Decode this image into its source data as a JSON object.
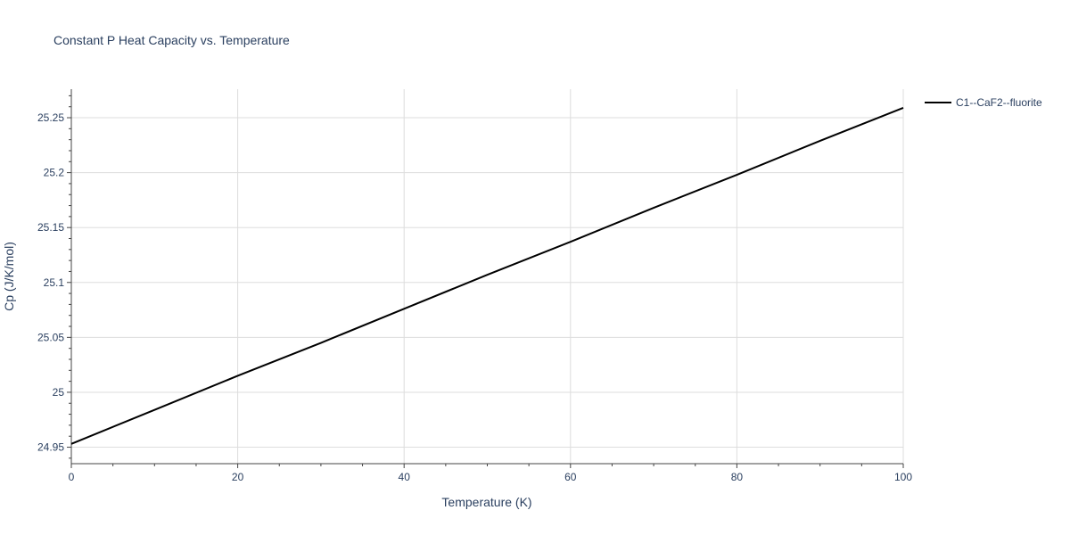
{
  "chart_data": {
    "type": "line",
    "title": "Constant P Heat Capacity vs. Temperature",
    "xlabel": "Temperature (K)",
    "ylabel": "Cp (J/K/mol)",
    "xlim": [
      0,
      100
    ],
    "ylim": [
      24.935,
      25.276
    ],
    "x_ticks": [
      0,
      20,
      40,
      60,
      80,
      100
    ],
    "x_tick_labels": [
      "0",
      "20",
      "40",
      "60",
      "80",
      "100"
    ],
    "y_ticks": [
      24.95,
      25.0,
      25.05,
      25.1,
      25.15,
      25.2,
      25.25
    ],
    "y_tick_labels": [
      "24.95",
      "25",
      "25.05",
      "25.1",
      "25.15",
      "25.2",
      "25.25"
    ],
    "x_minor_step": 5,
    "y_minor_step": 0.01,
    "grid": true,
    "legend_position": "top-right",
    "series": [
      {
        "name": "C1--CaF2--fluorite",
        "color": "#000000",
        "x": [
          0,
          10,
          20,
          30,
          40,
          50,
          60,
          70,
          80,
          90,
          100
        ],
        "y": [
          24.953,
          24.984,
          25.015,
          25.045,
          25.076,
          25.107,
          25.137,
          25.168,
          25.198,
          25.229,
          25.259
        ]
      }
    ]
  }
}
